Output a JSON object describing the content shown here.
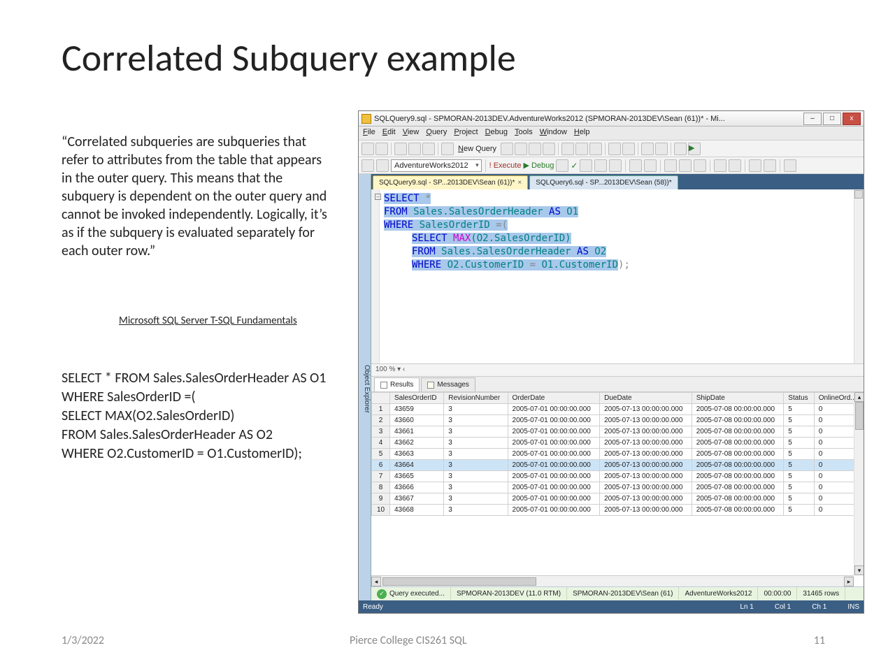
{
  "slide": {
    "title": "Correlated Subquery example",
    "quote": "“Correlated subqueries are subqueries that refer to attributes from the table that appears in the outer query. This means that the subquery is dependent on the outer query and cannot be invoked independently. Logically, it’s as if the subquery is evaluated separately for each outer row.”",
    "citation": "Microsoft SQL Server T-SQL Fundamentals",
    "sql_plain": "SELECT * FROM Sales.SalesOrderHeader AS O1\nWHERE SalesOrderID =(\nSELECT MAX(O2.SalesOrderID)\nFROM Sales.SalesOrderHeader AS O2\nWHERE O2.CustomerID = O1.CustomerID);",
    "footer_date": "1/3/2022",
    "footer_mid": "Pierce College CIS261 SQL",
    "footer_page": "11"
  },
  "ssms": {
    "title": "SQLQuery9.sql - SPMORAN-2013DEV.AdventureWorks2012 (SPMORAN-2013DEV\\Sean (61))* - Mi...",
    "menu": [
      "File",
      "Edit",
      "View",
      "Query",
      "Project",
      "Debug",
      "Tools",
      "Window",
      "Help"
    ],
    "database": "AdventureWorks2012",
    "newquery_label": "New Query",
    "execute_label": "Execute",
    "debug_label": "Debug",
    "tabs": [
      {
        "label": "SQLQuery9.sql - SP...2013DEV\\Sean (61))*",
        "active": true
      },
      {
        "label": "SQLQuery6.sql - SP...2013DEV\\Sean (58))*",
        "active": false
      }
    ],
    "object_explorer_label": "Object Explorer",
    "zoom": "100 %",
    "sql": {
      "l1_select": "SELECT",
      "l1_rest": " *",
      "l2_from": "FROM",
      "l2_rest": " Sales.SalesOrderHeader ",
      "l2_as": "AS",
      "l2_o1": " O1",
      "l3_where": "WHERE",
      "l3_rest": " SalesOrderID ",
      "l3_eq": "=",
      "l3_paren": "(",
      "l4_select": "SELECT ",
      "l4_max": "MAX",
      "l4_arg": "(O2.SalesOrderID)",
      "l5_from": "FROM",
      "l5_rest": " Sales.SalesOrderHeader ",
      "l5_as": "AS",
      "l5_o2": " O2",
      "l6_where": "WHERE",
      "l6_rest": " O2.CustomerID ",
      "l6_eq": "=",
      "l6_rest2": " O1.CustomerID",
      "l6_close": ");"
    },
    "results": {
      "tabs": {
        "results": "Results",
        "messages": "Messages"
      },
      "columns": [
        "",
        "SalesOrderID",
        "RevisionNumber",
        "OrderDate",
        "DueDate",
        "ShipDate",
        "Status",
        "OnlineOrd..."
      ],
      "rows": [
        [
          "1",
          "43659",
          "3",
          "2005-07-01 00:00:00.000",
          "2005-07-13 00:00:00.000",
          "2005-07-08 00:00:00.000",
          "5",
          "0"
        ],
        [
          "2",
          "43660",
          "3",
          "2005-07-01 00:00:00.000",
          "2005-07-13 00:00:00.000",
          "2005-07-08 00:00:00.000",
          "5",
          "0"
        ],
        [
          "3",
          "43661",
          "3",
          "2005-07-01 00:00:00.000",
          "2005-07-13 00:00:00.000",
          "2005-07-08 00:00:00.000",
          "5",
          "0"
        ],
        [
          "4",
          "43662",
          "3",
          "2005-07-01 00:00:00.000",
          "2005-07-13 00:00:00.000",
          "2005-07-08 00:00:00.000",
          "5",
          "0"
        ],
        [
          "5",
          "43663",
          "3",
          "2005-07-01 00:00:00.000",
          "2005-07-13 00:00:00.000",
          "2005-07-08 00:00:00.000",
          "5",
          "0"
        ],
        [
          "6",
          "43664",
          "3",
          "2005-07-01 00:00:00.000",
          "2005-07-13 00:00:00.000",
          "2005-07-08 00:00:00.000",
          "5",
          "0"
        ],
        [
          "7",
          "43665",
          "3",
          "2005-07-01 00:00:00.000",
          "2005-07-13 00:00:00.000",
          "2005-07-08 00:00:00.000",
          "5",
          "0"
        ],
        [
          "8",
          "43666",
          "3",
          "2005-07-01 00:00:00.000",
          "2005-07-13 00:00:00.000",
          "2005-07-08 00:00:00.000",
          "5",
          "0"
        ],
        [
          "9",
          "43667",
          "3",
          "2005-07-01 00:00:00.000",
          "2005-07-13 00:00:00.000",
          "2005-07-08 00:00:00.000",
          "5",
          "0"
        ],
        [
          "10",
          "43668",
          "3",
          "2005-07-01 00:00:00.000",
          "2005-07-13 00:00:00.000",
          "2005-07-08 00:00:00.000",
          "5",
          "0"
        ]
      ],
      "selected_row_index": 5
    },
    "status_query": {
      "msg": "Query executed...",
      "server": "SPMORAN-2013DEV (11.0 RTM)",
      "login": "SPMORAN-2013DEV\\Sean (61)",
      "db": "AdventureWorks2012",
      "time": "00:00:00",
      "rows": "31465 rows"
    },
    "statusbar": {
      "ready": "Ready",
      "ln": "Ln 1",
      "col": "Col 1",
      "ch": "Ch 1",
      "ins": "INS"
    }
  },
  "colors": {
    "keyword": "#0000cc",
    "function": "#cc00cc",
    "identifier": "#008080",
    "highlight": "#a8c8ec",
    "tabactive": "#fff6c8",
    "statusbar": "#3b5e84",
    "close_btn": "#c94f44",
    "panel_blue": "#bcd2e8",
    "success": "#4caf50"
  }
}
